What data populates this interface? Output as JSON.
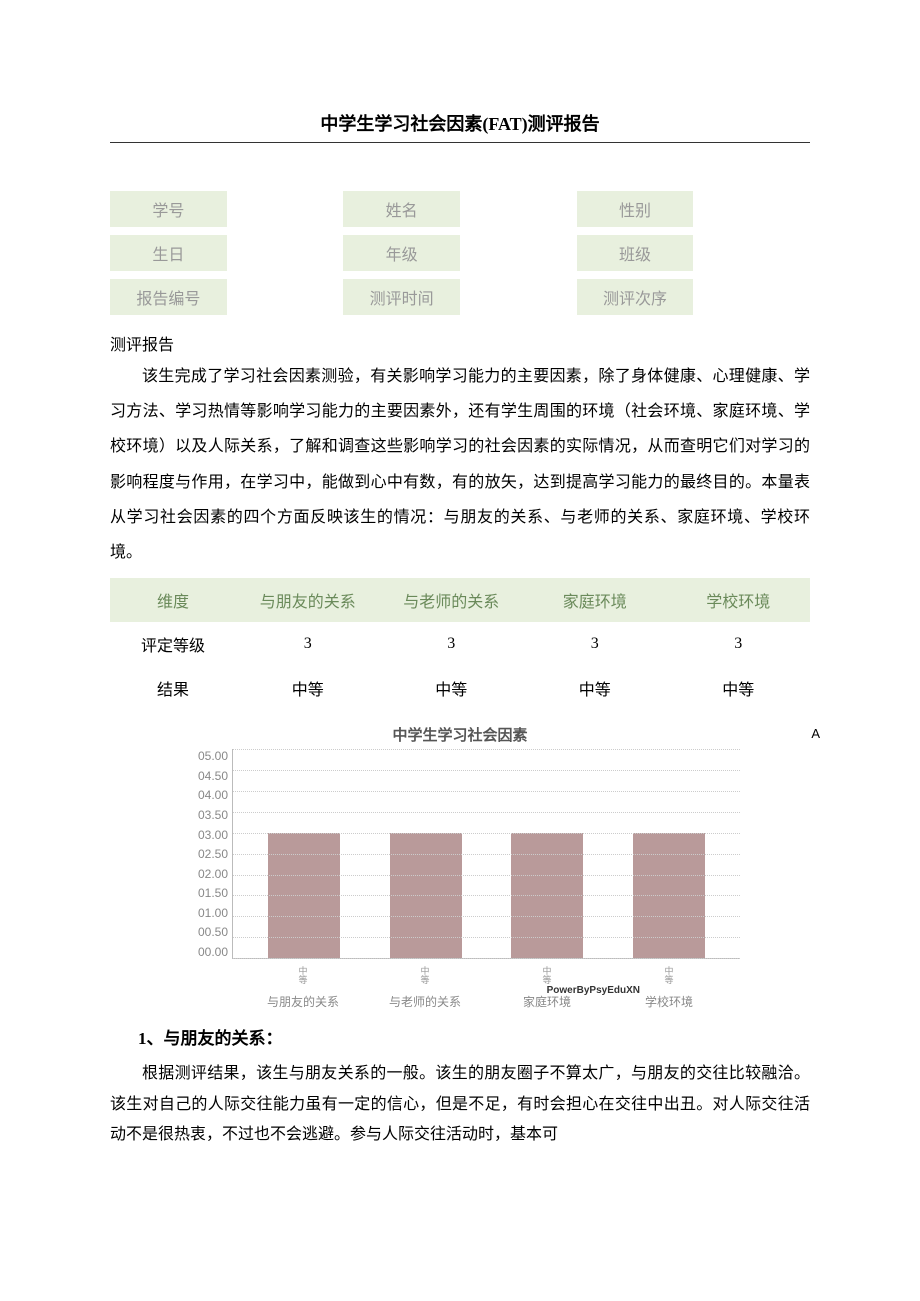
{
  "title": "中学生学习社会因素(FAT)测评报告",
  "info": {
    "r1": {
      "c1": "学号",
      "c2": "",
      "c3": "姓名",
      "c4": "",
      "c5": "性别",
      "c6": ""
    },
    "r2": {
      "c1": "生日",
      "c2": "",
      "c3": "年级",
      "c4": "",
      "c5": "班级",
      "c6": ""
    },
    "r3": {
      "c1": "报告编号",
      "c2": "",
      "c3": "测评时间",
      "c4": "",
      "c5": "测评次序",
      "c6": ""
    }
  },
  "report_label": "测评报告",
  "body": "该生完成了学习社会因素测验，有关影响学习能力的主要因素，除了身体健康、心理健康、学习方法、学习热情等影响学习能力的主要因素外，还有学生周围的环境（社会环境、家庭环境、学校环境）以及人际关系，了解和调查这些影响学习的社会因素的实际情况，从而查明它们对学习的影响程度与作用，在学习中，能做到心中有数，有的放矢，达到提高学习能力的最终目的。本量表从学习社会因素的四个方面反映该生的情况：与朋友的关系、与老师的关系、家庭环境、学校环境。",
  "dims": {
    "head": [
      "维度",
      "与朋友的关系",
      "与老师的关系",
      "家庭环境",
      "学校环境"
    ],
    "row1": [
      "评定等级",
      "3",
      "3",
      "3",
      "3"
    ],
    "row2": [
      "结果",
      "中等",
      "中等",
      "中等",
      "中等"
    ]
  },
  "chart": {
    "title": "中学生学习社会因素",
    "corner": "A",
    "type": "bar",
    "ylim_max": 5.0,
    "ylim_min": 0.0,
    "ytick_step": 0.5,
    "yticks": [
      "05.00",
      "04.50",
      "04.00",
      "03.50",
      "03.00",
      "02.50",
      "02.00",
      "01.50",
      "01.00",
      "00.50",
      "00.00"
    ],
    "categories": [
      "与朋友的关系",
      "与老师的关系",
      "家庭环境",
      "学校环境"
    ],
    "tick_small": [
      "中等",
      "中等",
      "中等",
      "中等"
    ],
    "values": [
      3.0,
      3.0,
      3.0,
      3.0
    ],
    "bar_color": "#b99a9a",
    "background_color": "#ffffff",
    "grid_color": "#cccccc",
    "watermark": "PowerByPsyEduXN"
  },
  "section": {
    "head": "1、与朋友的关系：",
    "text": "根据测评结果，该生与朋友关系的一般。该生的朋友圈子不算太广，与朋友的交往比较融洽。该生对自己的人际交往能力虽有一定的信心，但是不足，有时会担心在交往中出丑。对人际交往活动不是很热衷，不过也不会逃避。参与人际交往活动时，基本可"
  }
}
